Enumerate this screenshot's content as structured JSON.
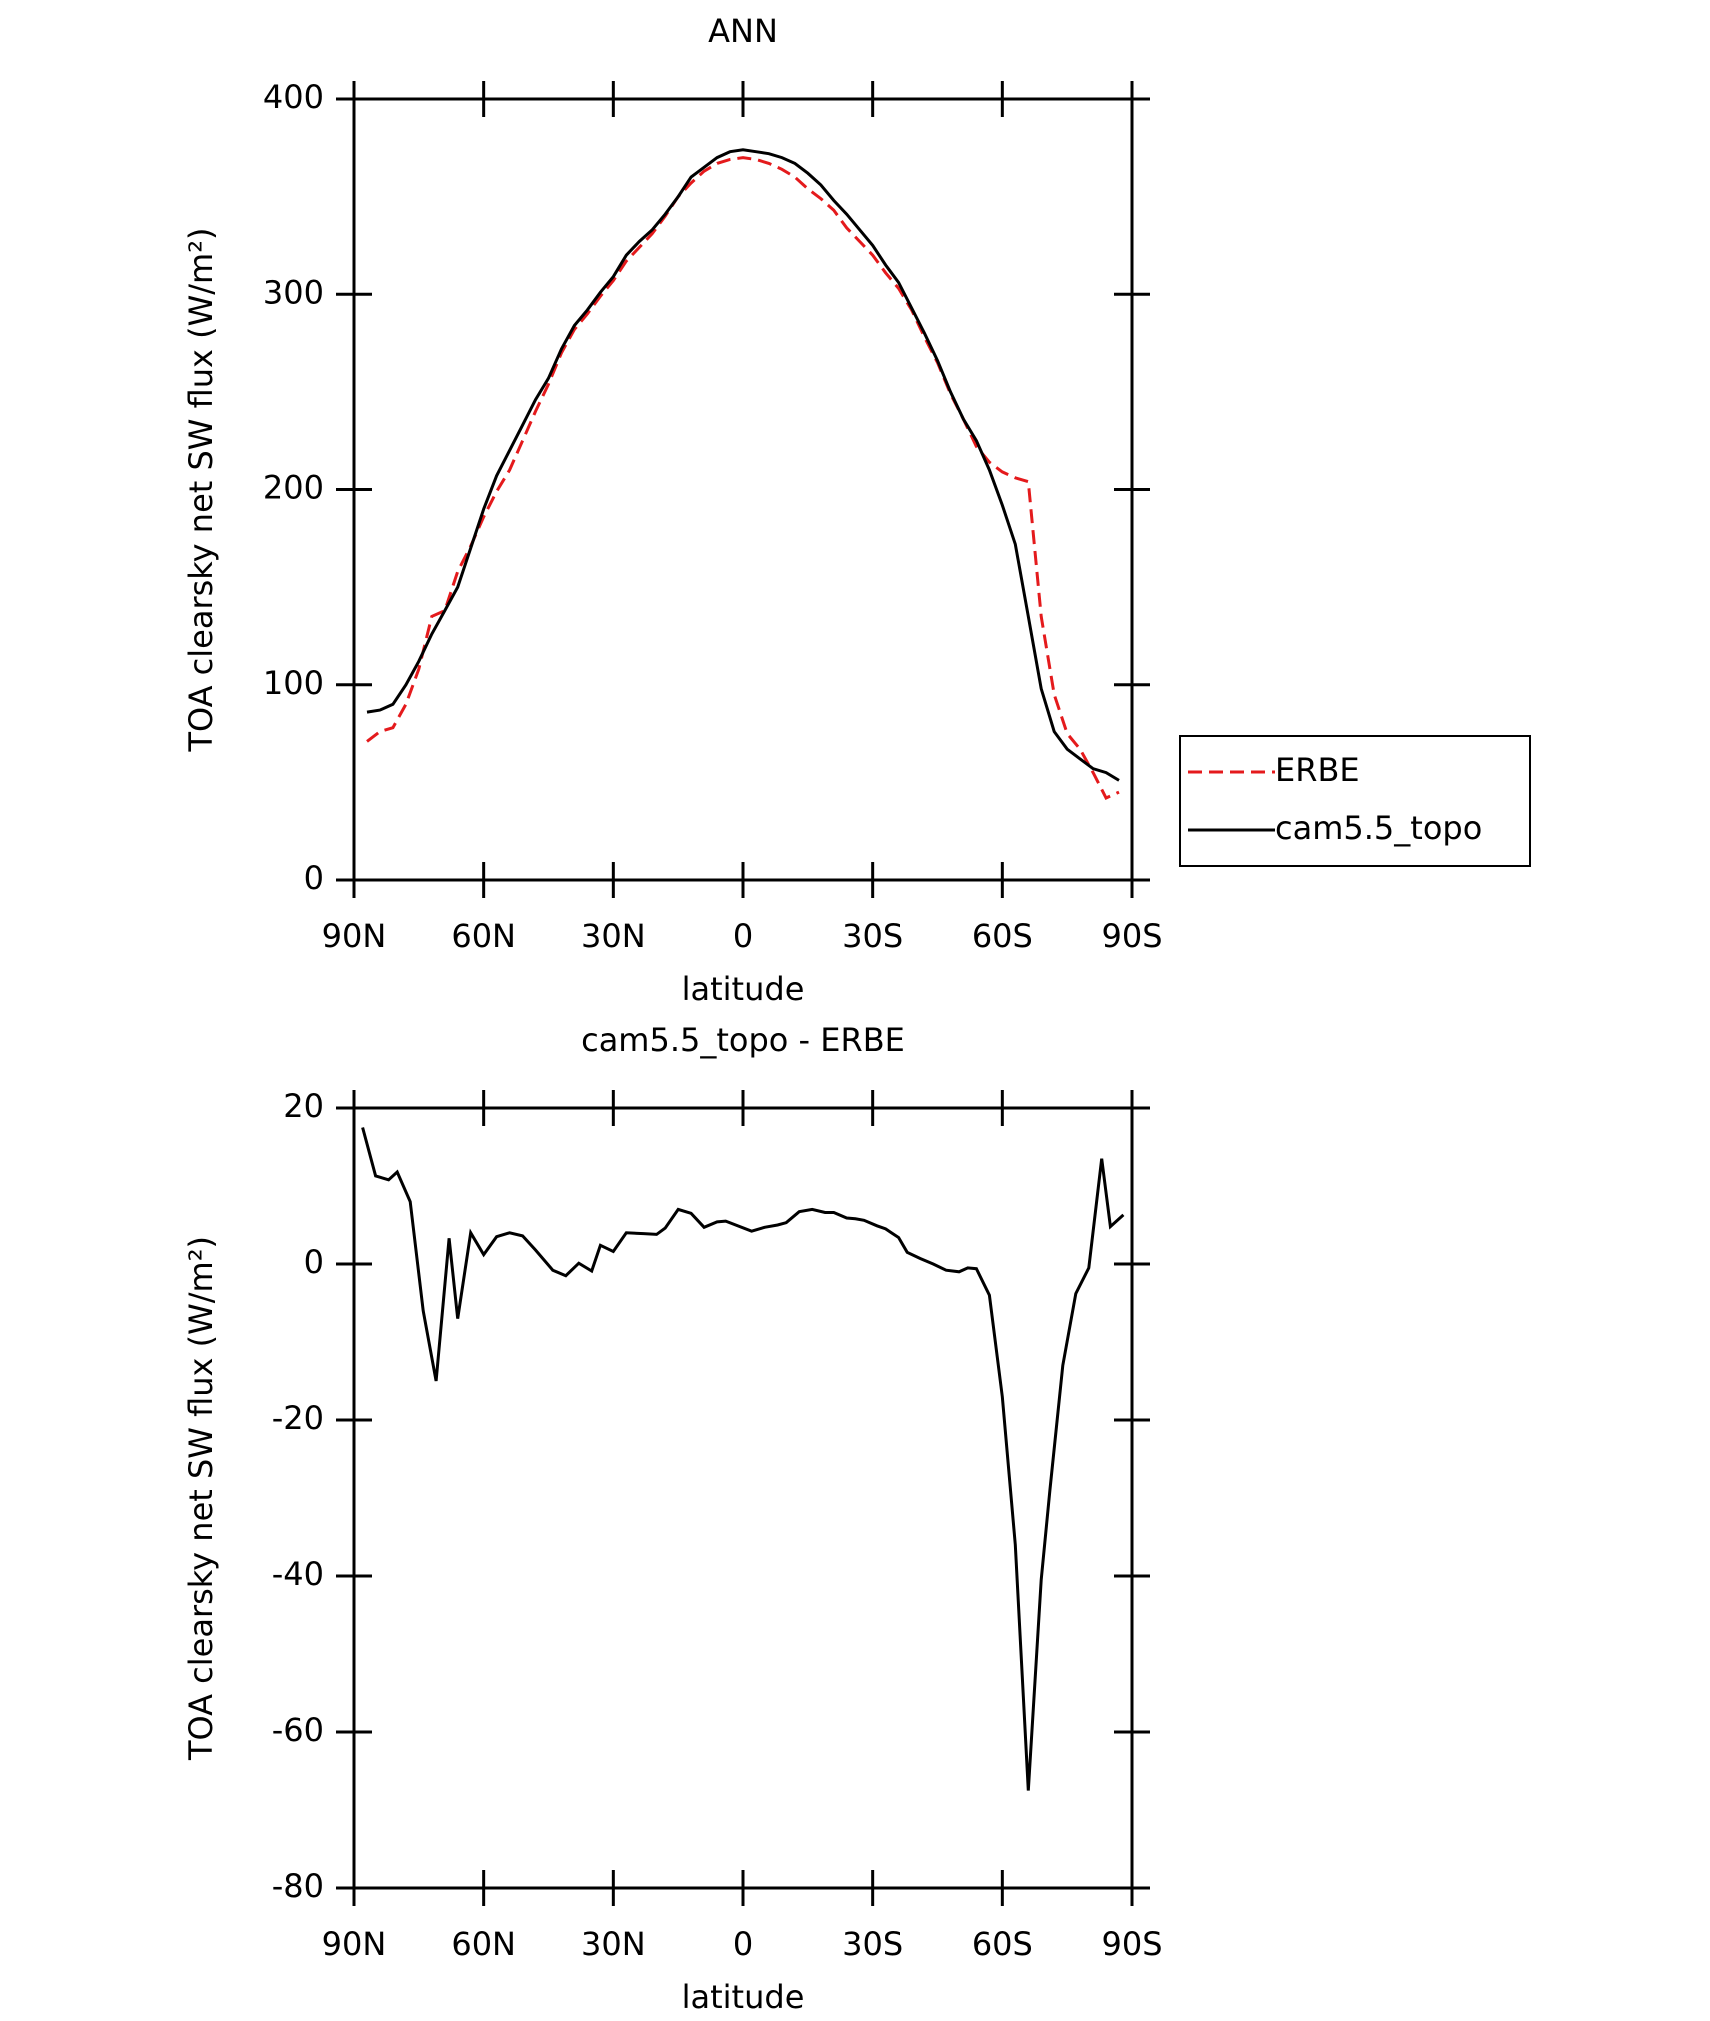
{
  "chart_data": [
    {
      "type": "line",
      "title": "ANN",
      "xlabel": "latitude",
      "ylabel": "TOA clearsky net SW flux (W/m²)",
      "x": [
        87,
        84,
        81,
        78,
        75,
        72,
        69,
        66,
        63,
        60,
        57,
        54,
        51,
        48,
        45,
        42,
        39,
        36,
        33,
        30,
        27,
        24,
        21,
        18,
        15,
        12,
        9,
        6,
        3,
        0,
        -3,
        -6,
        -9,
        -12,
        -15,
        -18,
        -21,
        -24,
        -27,
        -30,
        -33,
        -36,
        -39,
        -42,
        -45,
        -48,
        -51,
        -54,
        -57,
        -60,
        -63,
        -66,
        -69,
        -72,
        -75,
        -78,
        -81,
        -84,
        -87
      ],
      "series": [
        {
          "name": "ERBE",
          "color": "#e41a1c",
          "dash": true,
          "values": [
            71,
            76,
            78,
            90,
            108,
            135,
            138,
            158,
            171,
            186,
            199,
            210,
            225,
            240,
            254,
            270,
            282,
            290,
            299,
            307,
            317,
            324,
            331,
            340,
            350,
            357,
            363,
            367,
            369,
            370,
            369,
            367,
            364,
            360,
            354,
            349,
            343,
            334,
            327,
            320,
            311,
            303,
            292,
            278,
            265,
            249,
            236,
            222,
            214,
            209,
            206,
            204,
            135,
            95,
            75,
            67,
            55,
            42,
            45
          ]
        },
        {
          "name": "cam5.5_topo",
          "color": "#000000",
          "dash": false,
          "values": [
            86,
            87,
            90,
            100,
            112,
            126,
            138,
            150,
            170,
            190,
            207,
            220,
            233,
            246,
            257,
            272,
            284,
            292,
            301,
            309,
            320,
            327,
            333,
            341,
            350,
            360,
            365,
            370,
            373,
            374,
            373,
            372,
            370,
            367,
            362,
            356,
            348,
            341,
            333,
            325,
            315,
            306,
            293,
            280,
            266,
            250,
            236,
            225,
            210,
            192,
            172,
            135,
            98,
            76,
            67,
            62,
            57,
            55,
            51
          ]
        }
      ],
      "xlim": [
        90,
        -90
      ],
      "xticks": [
        {
          "value": 90,
          "label": "90N"
        },
        {
          "value": 60,
          "label": "60N"
        },
        {
          "value": 30,
          "label": "30N"
        },
        0,
        {
          "value": -30,
          "label": "30S"
        },
        {
          "value": -60,
          "label": "60S"
        },
        {
          "value": -90,
          "label": "90S"
        }
      ],
      "ylim": [
        0,
        400
      ],
      "yticks": [
        0,
        100,
        200,
        300,
        400
      ],
      "legend": "right"
    },
    {
      "type": "line",
      "title": "cam5.5_topo - ERBE",
      "xlabel": "latitude",
      "ylabel": "TOA clearsky net SW flux (W/m²)",
      "x": [
        88,
        85,
        82,
        80,
        77,
        74,
        71,
        68,
        66,
        63,
        60,
        57,
        54,
        51,
        48,
        44,
        41,
        38,
        35,
        33,
        30,
        27,
        23,
        20,
        18,
        15,
        12,
        9,
        6,
        4,
        -2,
        -5,
        -8,
        -10,
        -13,
        -16,
        -19,
        -21,
        -24,
        -26,
        -28,
        -31,
        -33,
        -36,
        -38,
        -41,
        -44,
        -47,
        -50,
        -52,
        -54,
        -57,
        -60,
        -63,
        -66,
        -69,
        -71,
        -74,
        -77,
        -80,
        -83,
        -85,
        -88
      ],
      "series": [
        {
          "name": "cam5.5_topo - ERBE",
          "color": "#000000",
          "values": [
            17.5,
            11.3,
            10.8,
            11.8,
            8,
            -6,
            -15,
            3.3,
            -7,
            4,
            1.2,
            3.5,
            4,
            3.6,
            1.8,
            -0.8,
            -1.5,
            0.1,
            -0.9,
            2.4,
            1.6,
            4,
            3.9,
            3.8,
            4.6,
            7,
            6.5,
            4.7,
            5.4,
            5.5,
            4.2,
            4.7,
            5,
            5.3,
            6.7,
            7,
            6.6,
            6.6,
            5.9,
            5.8,
            5.6,
            4.9,
            4.5,
            3.4,
            1.5,
            0.7,
            0,
            -0.8,
            -1,
            -0.5,
            -0.6,
            -4,
            -17,
            -36,
            -67.5,
            -40.5,
            -29,
            -13,
            -3.8,
            -0.5,
            13.5,
            4.8,
            6.3
          ]
        }
      ],
      "xlim": [
        90,
        -90
      ],
      "xticks": [
        {
          "value": 90,
          "label": "90N"
        },
        {
          "value": 60,
          "label": "60N"
        },
        {
          "value": 30,
          "label": "30N"
        },
        0,
        {
          "value": -30,
          "label": "30S"
        },
        {
          "value": -60,
          "label": "60S"
        },
        {
          "value": -90,
          "label": "90S"
        }
      ],
      "ylim": [
        -80,
        20
      ],
      "yticks": [
        -80,
        -60,
        -40,
        -20,
        0,
        20
      ]
    }
  ]
}
